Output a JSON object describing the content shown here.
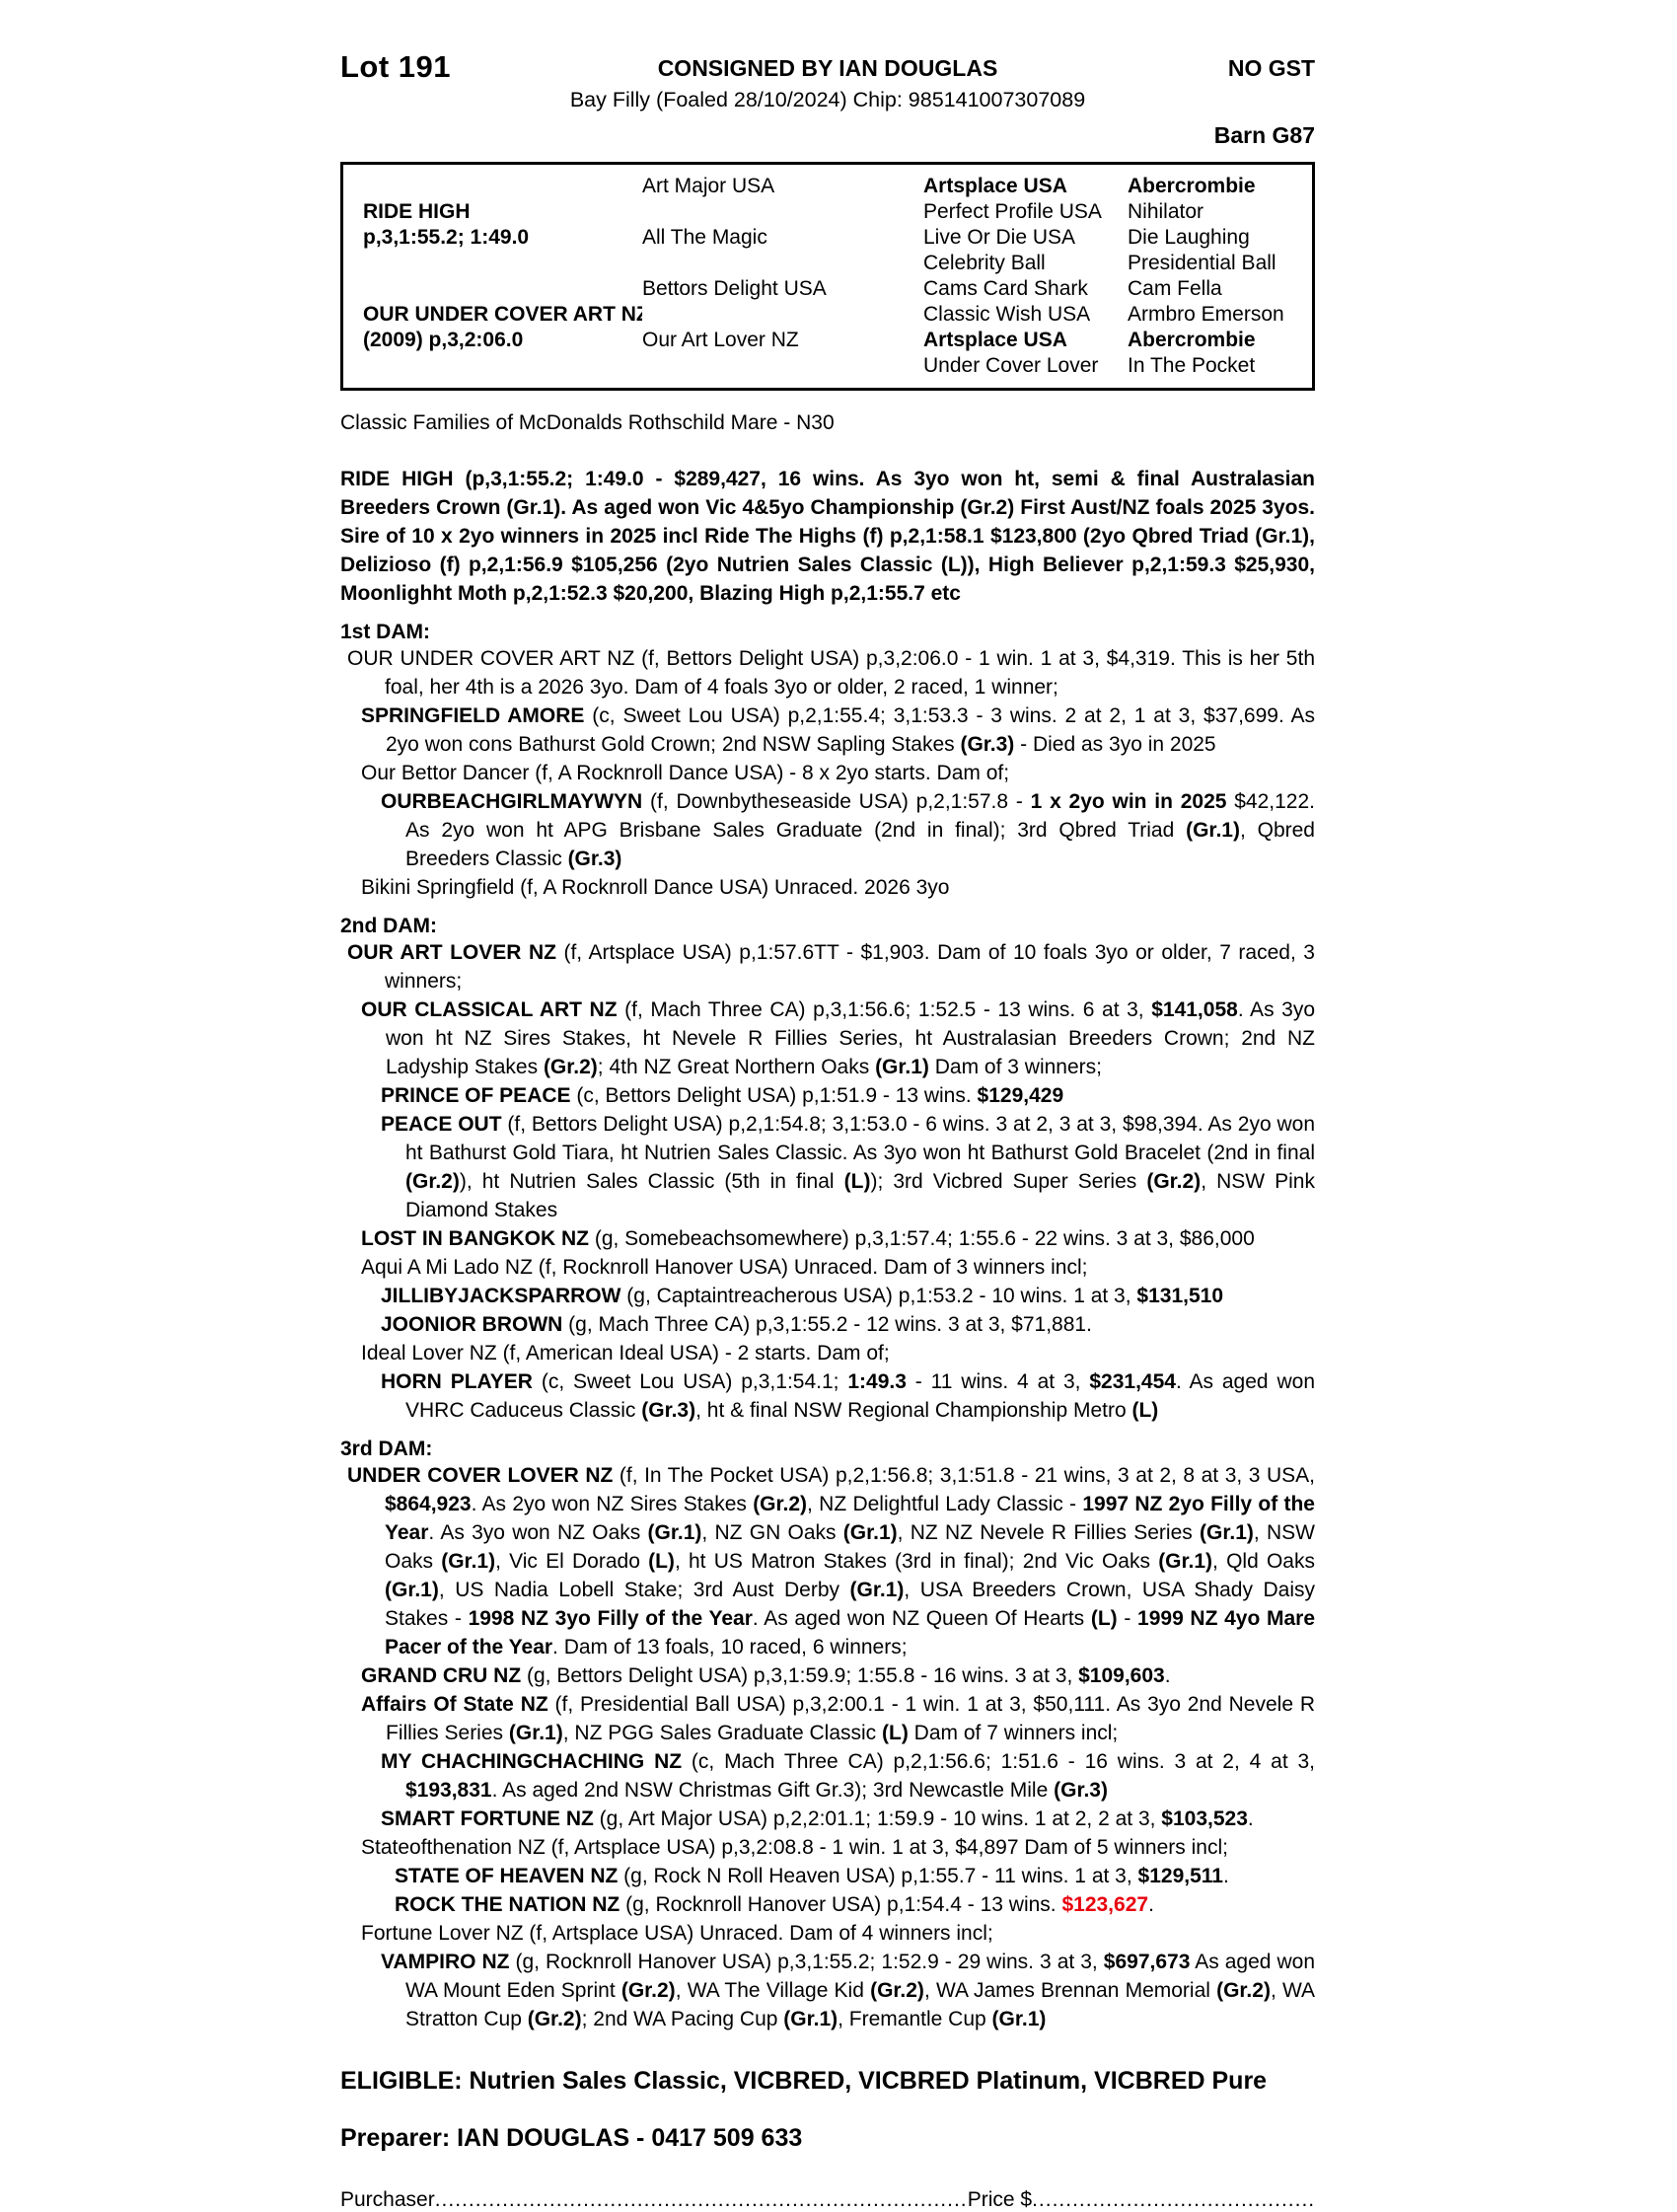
{
  "header": {
    "lot": "Lot 191",
    "consigned": "CONSIGNED BY IAN DOUGLAS",
    "no_gst": "NO GST",
    "foaling": "Bay Filly (Foaled 28/10/2024) Chip: 985141007307089",
    "barn": "Barn G87"
  },
  "pedigree_table": {
    "rows": [
      [
        "",
        "Art Major USA",
        "Artsplace USA",
        "Abercrombie"
      ],
      [
        "RIDE HIGH",
        "",
        "Perfect Profile USA",
        "Nihilator"
      ],
      [
        "p,3,1:55.2; 1:49.0",
        "All The Magic",
        "Live Or Die USA",
        "Die Laughing"
      ],
      [
        "",
        "",
        "Celebrity Ball",
        "Presidential Ball"
      ],
      [
        "",
        "Bettors Delight USA",
        "Cams Card Shark",
        "Cam Fella"
      ],
      [
        "OUR UNDER COVER ART NZ",
        "",
        "Classic Wish USA",
        "Armbro Emerson"
      ],
      [
        "(2009) p,3,2:06.0",
        "Our Art Lover NZ",
        "Artsplace USA",
        "Abercrombie"
      ],
      [
        "",
        "",
        "Under Cover Lover",
        "In The Pocket"
      ]
    ]
  },
  "classic_families_note": "Classic Families of McDonalds Rothschild Mare - N30",
  "sire_summary": [
    {
      "t": "RIDE HIGH (p,3,1:55.2; 1:49.0 - $289,427, 16 wins. As 3yo won ht, semi & final Australasian Breeders Crown (Gr.1). As aged won Vic 4&5yo Championship (Gr.2) First Aust/NZ foals 2025 3yos. Sire of 10 x 2yo winners in 2025 incl Ride The Highs (f) p,2,1:58.1 $123,800 (2yo Qbred Triad (Gr.1), Delizioso (f) p,2,1:56.9 $105,256 (2yo Nutrien Sales Classic (L)), High Believer p,2,1:59.3 $25,930, Moonlighht Moth p,2,1:52.3 $20,200, Blazing High p,2,1:55.7 etc",
      "b": true
    }
  ],
  "sections": [
    {
      "heading": "1st DAM:",
      "entries": [
        {
          "level": 0,
          "segs": [
            {
              "t": "OUR UNDER COVER ART NZ (f, Bettors Delight USA) p,3,2:06.0 - 1 win. 1 at 3, $4,319. This is her 5th foal, her 4th is a 2026 3yo. Dam of 4 foals 3yo or older, 2 raced, 1 winner;"
            }
          ]
        },
        {
          "level": 1,
          "segs": [
            {
              "t": "SPRINGFIELD AMORE",
              "b": true
            },
            {
              "t": " (c, Sweet Lou USA) p,2,1:55.4; 3,1:53.3 - 3 wins. 2 at 2, 1 at 3, $37,699. As 2yo won cons Bathurst Gold Crown; 2nd NSW Sapling Stakes "
            },
            {
              "t": "(Gr.3)",
              "b": true
            },
            {
              "t": " - Died as 3yo in 2025"
            }
          ]
        },
        {
          "level": 1,
          "segs": [
            {
              "t": "Our Bettor Dancer (f, A Rocknroll Dance USA) - 8 x 2yo starts. Dam of;"
            }
          ]
        },
        {
          "level": 2,
          "segs": [
            {
              "t": "OURBEACHGIRLMAYWYN",
              "b": true
            },
            {
              "t": " (f, Downbytheseaside USA) p,2,1:57.8 - "
            },
            {
              "t": "1 x 2yo win in 2025",
              "b": true
            },
            {
              "t": " $42,122. As 2yo won ht APG Brisbane Sales Graduate (2nd in final); 3rd Qbred Triad "
            },
            {
              "t": "(Gr.1)",
              "b": true
            },
            {
              "t": ", Qbred Breeders Classic "
            },
            {
              "t": "(Gr.3)",
              "b": true
            }
          ]
        },
        {
          "level": 1,
          "segs": [
            {
              "t": "Bikini Springfield (f, A Rocknroll Dance USA) Unraced. 2026 3yo"
            }
          ]
        }
      ]
    },
    {
      "heading": "2nd DAM:",
      "entries": [
        {
          "level": 0,
          "segs": [
            {
              "t": "OUR ART LOVER NZ",
              "b": true
            },
            {
              "t": " (f, Artsplace USA) p,1:57.6TT - $1,903. Dam of 10 foals 3yo or older, 7 raced, 3 winners;"
            }
          ]
        },
        {
          "level": 1,
          "segs": [
            {
              "t": "OUR CLASSICAL ART NZ",
              "b": true
            },
            {
              "t": " (f, Mach Three CA) p,3,1:56.6; 1:52.5 - 13 wins. 6 at 3, "
            },
            {
              "t": "$141,058",
              "b": true
            },
            {
              "t": ". As 3yo won ht NZ Sires Stakes, ht Nevele R Fillies Series, ht Australasian Breeders Crown; 2nd NZ Ladyship Stakes "
            },
            {
              "t": "(Gr.2)",
              "b": true
            },
            {
              "t": "; 4th NZ Great Northern Oaks "
            },
            {
              "t": "(Gr.1)",
              "b": true
            },
            {
              "t": " Dam of 3 winners;"
            }
          ]
        },
        {
          "level": 2,
          "segs": [
            {
              "t": "PRINCE OF PEACE",
              "b": true
            },
            {
              "t": " (c, Bettors Delight USA) p,1:51.9 - 13 wins. "
            },
            {
              "t": "$129,429",
              "b": true
            }
          ]
        },
        {
          "level": 2,
          "segs": [
            {
              "t": "PEACE OUT",
              "b": true
            },
            {
              "t": " (f, Bettors Delight USA) p,2,1:54.8; 3,1:53.0 - 6 wins. 3 at 2, 3 at 3, $98,394. As 2yo won ht Bathurst Gold Tiara, ht Nutrien Sales Classic. As 3yo won ht Bathurst Gold Bracelet (2nd in final "
            },
            {
              "t": "(Gr.2)",
              "b": true
            },
            {
              "t": "), ht Nutrien Sales Classic (5th in final "
            },
            {
              "t": "(L)",
              "b": true
            },
            {
              "t": "); 3rd Vicbred Super Series "
            },
            {
              "t": "(Gr.2)",
              "b": true
            },
            {
              "t": ", NSW Pink Diamond Stakes"
            }
          ]
        },
        {
          "level": 1,
          "segs": [
            {
              "t": "LOST IN BANGKOK NZ",
              "b": true
            },
            {
              "t": " (g, Somebeachsomewhere) p,3,1:57.4; 1:55.6 - 22 wins. 3 at 3, $86,000"
            }
          ]
        },
        {
          "level": 1,
          "segs": [
            {
              "t": "Aqui A Mi Lado NZ (f, Rocknroll Hanover USA) Unraced. Dam of 3 winners incl;"
            }
          ]
        },
        {
          "level": 2,
          "segs": [
            {
              "t": "JILLIBYJACKSPARROW",
              "b": true
            },
            {
              "t": " (g, Captaintreacherous USA) p,1:53.2 - 10 wins. 1 at 3, "
            },
            {
              "t": "$131,510",
              "b": true
            }
          ]
        },
        {
          "level": 2,
          "segs": [
            {
              "t": "JOONIOR BROWN",
              "b": true
            },
            {
              "t": " (g, Mach Three CA) p,3,1:55.2 - 12 wins. 3 at 3, $71,881."
            }
          ]
        },
        {
          "level": 1,
          "segs": [
            {
              "t": "Ideal Lover NZ (f, American Ideal USA) - 2 starts. Dam of;"
            }
          ]
        },
        {
          "level": 2,
          "segs": [
            {
              "t": "HORN PLAYER",
              "b": true
            },
            {
              "t": " (c, Sweet Lou USA) p,3,1:54.1; "
            },
            {
              "t": "1:49.3",
              "b": true
            },
            {
              "t": " - 11 wins. 4 at 3, "
            },
            {
              "t": "$231,454",
              "b": true
            },
            {
              "t": ". As aged won VHRC Caduceus Classic "
            },
            {
              "t": "(Gr.3)",
              "b": true
            },
            {
              "t": ", ht & final NSW Regional Championship Metro "
            },
            {
              "t": "(L)",
              "b": true
            }
          ]
        }
      ]
    },
    {
      "heading": "3rd DAM:",
      "entries": [
        {
          "level": 0,
          "segs": [
            {
              "t": "UNDER COVER LOVER NZ",
              "b": true
            },
            {
              "t": " (f, In The Pocket USA) p,2,1:56.8; 3,1:51.8 - 21 wins, 3 at 2, 8 at 3, 3 USA, "
            },
            {
              "t": "$864,923",
              "b": true
            },
            {
              "t": ". As 2yo won NZ Sires Stakes "
            },
            {
              "t": "(Gr.2)",
              "b": true
            },
            {
              "t": ", NZ Delightful Lady Classic - "
            },
            {
              "t": "1997 NZ 2yo Filly of the Year",
              "b": true
            },
            {
              "t": ". As 3yo won NZ Oaks "
            },
            {
              "t": "(Gr.1)",
              "b": true
            },
            {
              "t": ", NZ GN Oaks "
            },
            {
              "t": "(Gr.1)",
              "b": true
            },
            {
              "t": ", NZ NZ Nevele R Fillies Series "
            },
            {
              "t": "(Gr.1)",
              "b": true
            },
            {
              "t": ", NSW Oaks "
            },
            {
              "t": "(Gr.1)",
              "b": true
            },
            {
              "t": ", Vic El Dorado "
            },
            {
              "t": "(L)",
              "b": true
            },
            {
              "t": ", ht US Matron Stakes (3rd in final); 2nd Vic Oaks "
            },
            {
              "t": "(Gr.1)",
              "b": true
            },
            {
              "t": ", Qld Oaks "
            },
            {
              "t": "(Gr.1)",
              "b": true
            },
            {
              "t": ", US Nadia Lobell Stake; 3rd Aust Derby "
            },
            {
              "t": "(Gr.1)",
              "b": true
            },
            {
              "t": ", USA Breeders Crown, USA Shady Daisy Stakes - "
            },
            {
              "t": "1998 NZ 3yo Filly of the Year",
              "b": true
            },
            {
              "t": ". As aged won NZ Queen Of Hearts "
            },
            {
              "t": "(L)",
              "b": true
            },
            {
              "t": " - "
            },
            {
              "t": "1999 NZ 4yo Mare Pacer of the Year",
              "b": true
            },
            {
              "t": ". Dam of 13 foals, 10 raced, 6 winners;"
            }
          ]
        },
        {
          "level": 1,
          "segs": [
            {
              "t": "GRAND CRU NZ",
              "b": true
            },
            {
              "t": " (g, Bettors Delight USA) p,3,1:59.9; 1:55.8 - 16 wins. 3 at 3, "
            },
            {
              "t": "$109,603",
              "b": true
            },
            {
              "t": "."
            }
          ]
        },
        {
          "level": 1,
          "segs": [
            {
              "t": "Affairs Of State NZ",
              "b": true
            },
            {
              "t": " (f, Presidential Ball USA) p,3,2:00.1 - 1 win. 1 at 3, $50,111. As 3yo 2nd Nevele R Fillies Series "
            },
            {
              "t": "(Gr.1)",
              "b": true
            },
            {
              "t": ", NZ PGG Sales Graduate Classic "
            },
            {
              "t": "(L)",
              "b": true
            },
            {
              "t": " Dam of 7 winners incl;"
            }
          ]
        },
        {
          "level": 2,
          "segs": [
            {
              "t": "MY CHACHINGCHACHING NZ",
              "b": true
            },
            {
              "t": " (c, Mach Three CA) p,2,1:56.6; 1:51.6 - 16 wins. 3 at 2, 4 at 3, "
            },
            {
              "t": "$193,831",
              "b": true
            },
            {
              "t": ". As aged 2nd NSW Christmas Gift Gr.3); 3rd Newcastle Mile "
            },
            {
              "t": "(Gr.3)",
              "b": true
            }
          ]
        },
        {
          "level": 2,
          "segs": [
            {
              "t": "SMART FORTUNE NZ",
              "b": true
            },
            {
              "t": " (g, Art Major USA) p,2,2:01.1; 1:59.9 - 10 wins. 1 at 2, 2 at 3, "
            },
            {
              "t": "$103,523",
              "b": true
            },
            {
              "t": "."
            }
          ]
        },
        {
          "level": 1,
          "segs": [
            {
              "t": "Stateofthenation NZ (f, Artsplace USA) p,3,2:08.8 - 1 win. 1 at 3, $4,897 Dam of 5 winners incl;"
            }
          ]
        },
        {
          "level": 3,
          "segs": [
            {
              "t": "STATE OF HEAVEN NZ",
              "b": true
            },
            {
              "t": " (g, Rock N Roll Heaven USA) p,1:55.7 - 11 wins. 1 at 3, "
            },
            {
              "t": "$129,511",
              "b": true
            },
            {
              "t": "."
            }
          ]
        },
        {
          "level": 3,
          "segs": [
            {
              "t": "ROCK THE NATION NZ",
              "b": true
            },
            {
              "t": " (g, Rocknroll Hanover USA) p,1:54.4 - 13 wins. "
            },
            {
              "t": "$123,627",
              "b": true,
              "c": "#e8000d"
            },
            {
              "t": "."
            }
          ]
        },
        {
          "level": 1,
          "segs": [
            {
              "t": "Fortune Lover NZ (f, Artsplace USA) Unraced. Dam of 4 winners incl;"
            }
          ]
        },
        {
          "level": 2,
          "segs": [
            {
              "t": "VAMPIRO NZ",
              "b": true
            },
            {
              "t": " (g, Rocknroll Hanover USA) p,3,1:55.2; 1:52.9 - 29 wins. 3 at 3, "
            },
            {
              "t": "$697,673",
              "b": true
            },
            {
              "t": " As aged won WA Mount Eden Sprint "
            },
            {
              "t": "(Gr.2)",
              "b": true
            },
            {
              "t": ", WA The Village Kid "
            },
            {
              "t": "(Gr.2)",
              "b": true
            },
            {
              "t": ", WA James Brennan Memorial "
            },
            {
              "t": "(Gr.2)",
              "b": true
            },
            {
              "t": ", WA Stratton Cup "
            },
            {
              "t": "(Gr.2)",
              "b": true
            },
            {
              "t": "; 2nd WA Pacing Cup "
            },
            {
              "t": "(Gr.1)",
              "b": true
            },
            {
              "t": ", Fremantle Cup "
            },
            {
              "t": "(Gr.1)",
              "b": true
            }
          ]
        }
      ]
    }
  ],
  "eligible": "ELIGIBLE: Nutrien Sales Classic, VICBRED, VICBRED Platinum, VICBRED Pure",
  "preparer": "Preparer: IAN DOUGLAS - 0417 509 633",
  "footer": {
    "purchaser_label": "Purchaser",
    "dots1": "........................................................................................................................................",
    "price_label": "Price $",
    "dots2": "........................................................................................"
  },
  "colors": {
    "highlight_red": "#e8000d",
    "text": "#000000",
    "page_bg": "#ffffff"
  }
}
